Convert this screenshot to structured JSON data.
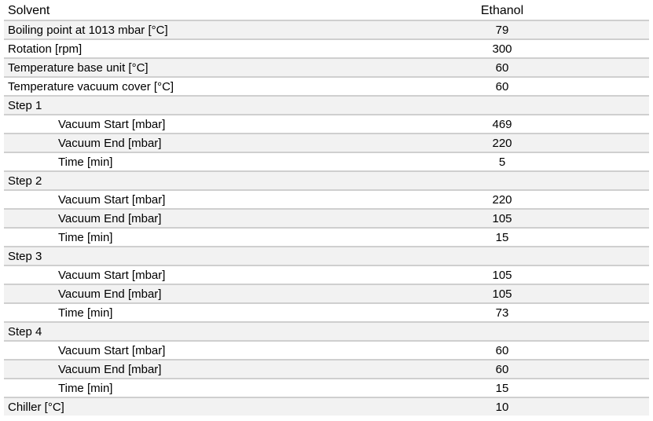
{
  "header": {
    "label": "Solvent",
    "value": "Ethanol"
  },
  "rows": [
    {
      "label": "Boiling point at 1013 mbar [°C]",
      "value": "79",
      "indent": false
    },
    {
      "label": "Rotation [rpm]",
      "value": "300",
      "indent": false
    },
    {
      "label": "Temperature base unit [°C]",
      "value": "60",
      "indent": false
    },
    {
      "label": "Temperature vacuum cover [°C]",
      "value": "60",
      "indent": false
    },
    {
      "label": "Step 1",
      "value": "",
      "indent": false
    },
    {
      "label": "Vacuum Start [mbar]",
      "value": "469",
      "indent": true
    },
    {
      "label": "Vacuum End [mbar]",
      "value": "220",
      "indent": true
    },
    {
      "label": "Time [min]",
      "value": "5",
      "indent": true
    },
    {
      "label": "Step 2",
      "value": "",
      "indent": false
    },
    {
      "label": "Vacuum Start [mbar]",
      "value": "220",
      "indent": true
    },
    {
      "label": "Vacuum End [mbar]",
      "value": "105",
      "indent": true
    },
    {
      "label": "Time [min]",
      "value": "15",
      "indent": true
    },
    {
      "label": "Step 3",
      "value": "",
      "indent": false
    },
    {
      "label": "Vacuum Start [mbar]",
      "value": "105",
      "indent": true
    },
    {
      "label": "Vacuum End [mbar]",
      "value": "105",
      "indent": true
    },
    {
      "label": "Time [min]",
      "value": "73",
      "indent": true
    },
    {
      "label": "Step 4",
      "value": "",
      "indent": false
    },
    {
      "label": "Vacuum Start [mbar]",
      "value": "60",
      "indent": true
    },
    {
      "label": "Vacuum End [mbar]",
      "value": "60",
      "indent": true
    },
    {
      "label": "Time [min]",
      "value": "15",
      "indent": true
    },
    {
      "label": "Chiller [°C]",
      "value": "10",
      "indent": false
    }
  ]
}
